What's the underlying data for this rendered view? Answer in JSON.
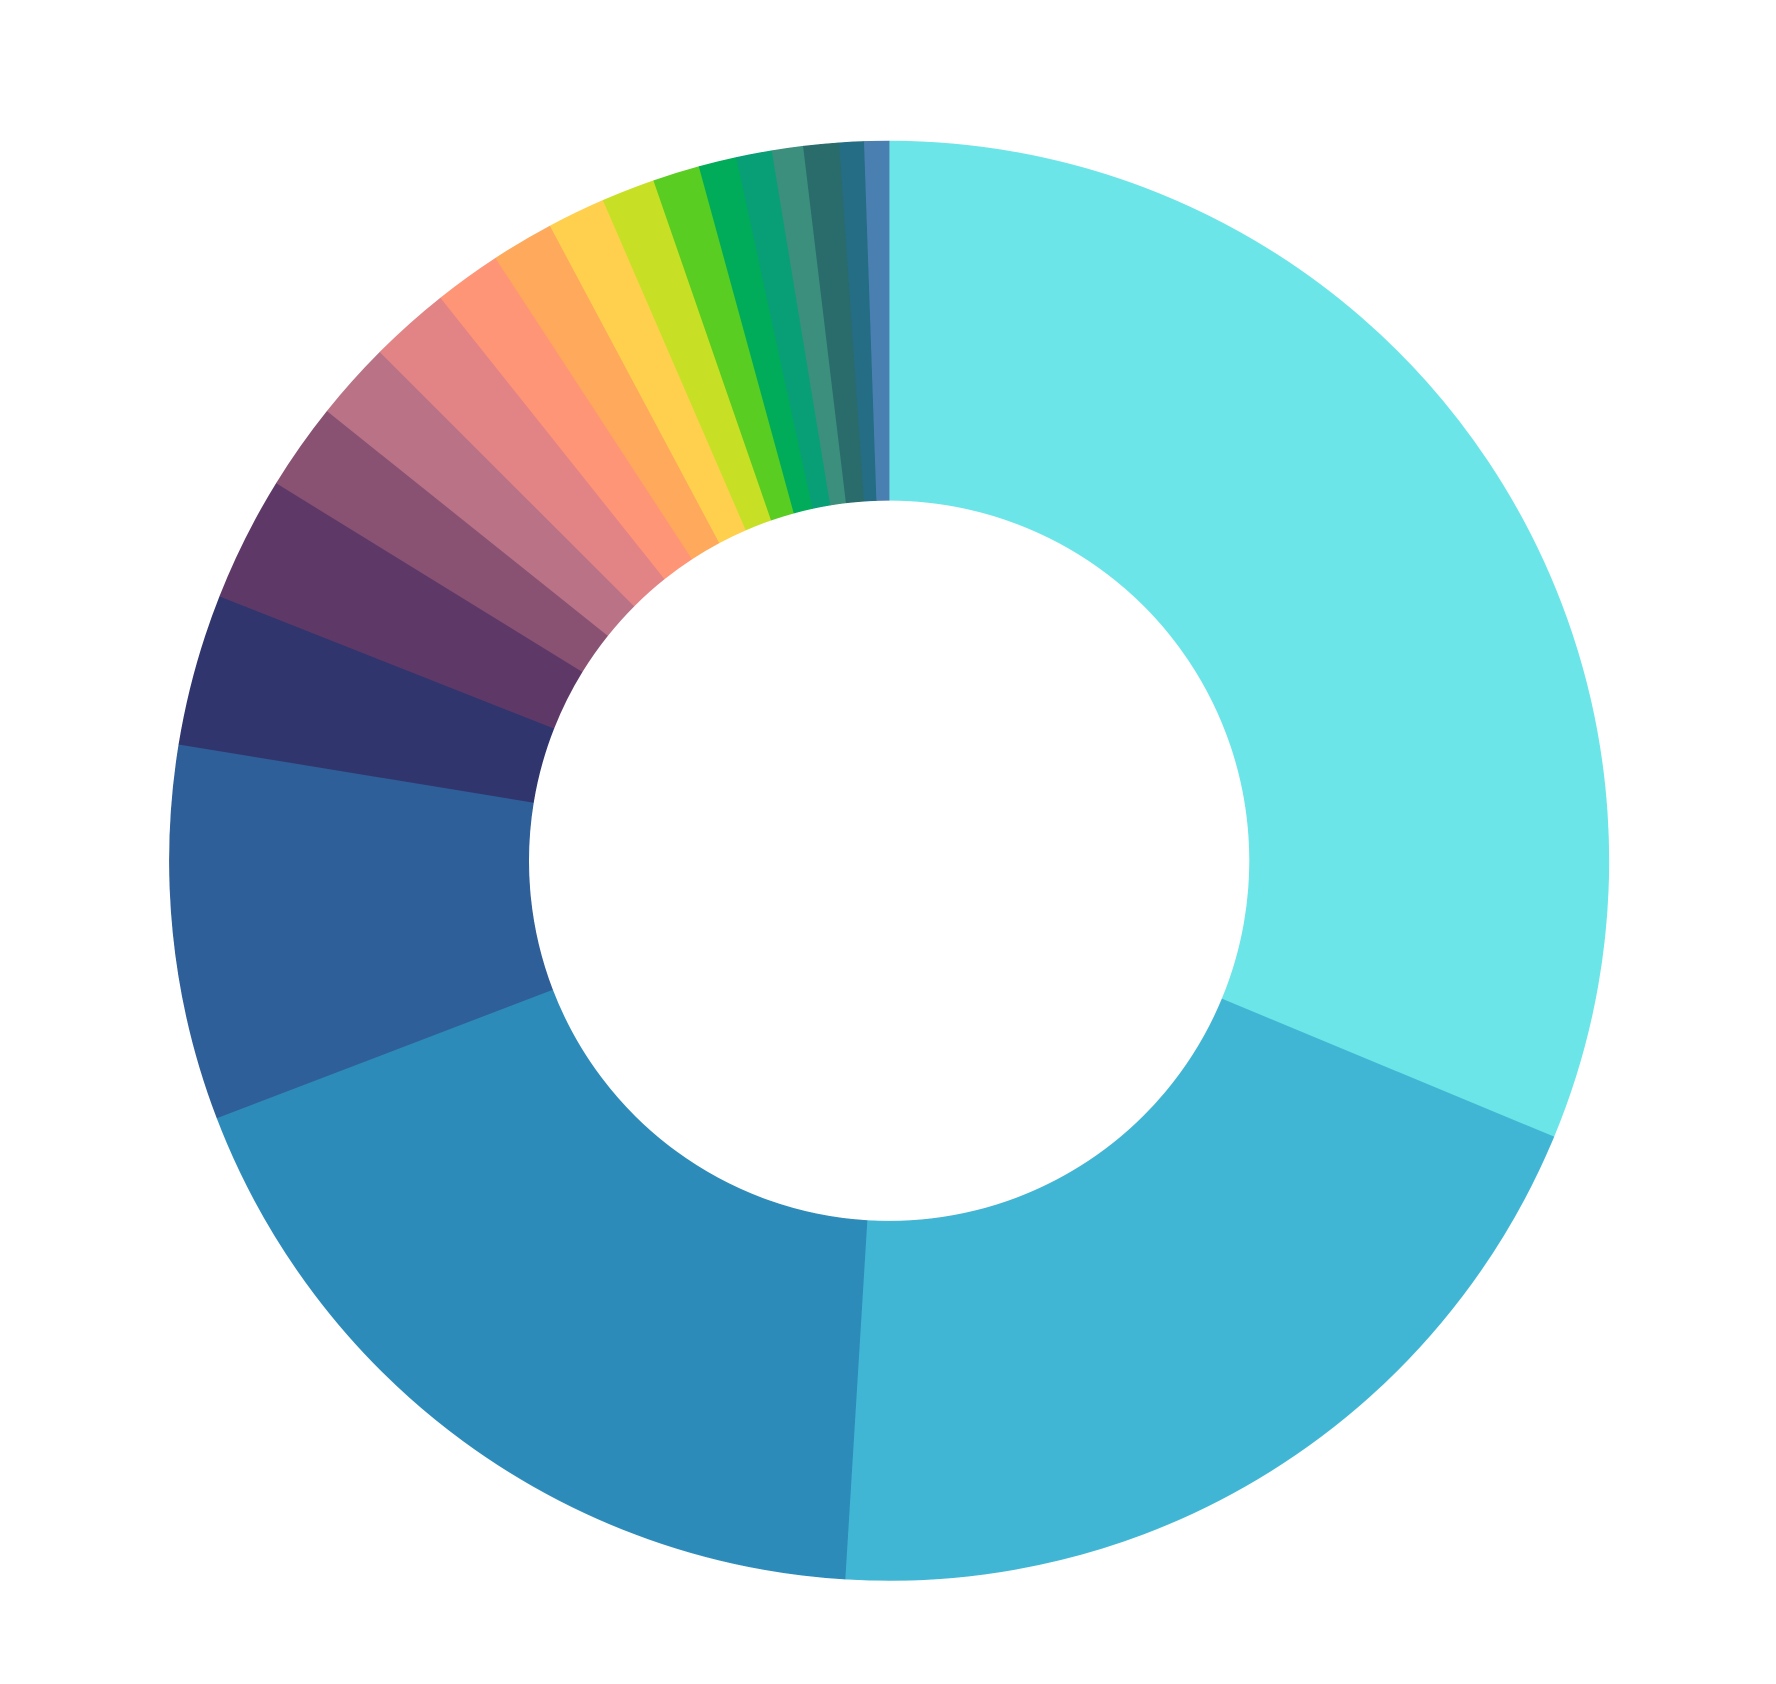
{
  "chart_data": {
    "type": "donut",
    "values": [
      31.25,
      19.7,
      18.2,
      8.4,
      3.4,
      2.8,
      1.95,
      1.75,
      1.8,
      1.5,
      1.4,
      1.3,
      1.2,
      1.05,
      0.85,
      0.8,
      0.7,
      0.8,
      0.55,
      0.55
    ],
    "colors": [
      "#6ce5e8",
      "#41b6d4",
      "#2d8bba",
      "#2f5f98",
      "#31356e",
      "#5e3967",
      "#895273",
      "#b97286",
      "#e28385",
      "#fe9577",
      "#fea95c",
      "#ffd04e",
      "#c7e026",
      "#59cd21",
      "#00ac5a",
      "#089f76",
      "#3c8f7d",
      "#2a6b6b",
      "#246d85",
      "#4a7fb1"
    ]
  }
}
